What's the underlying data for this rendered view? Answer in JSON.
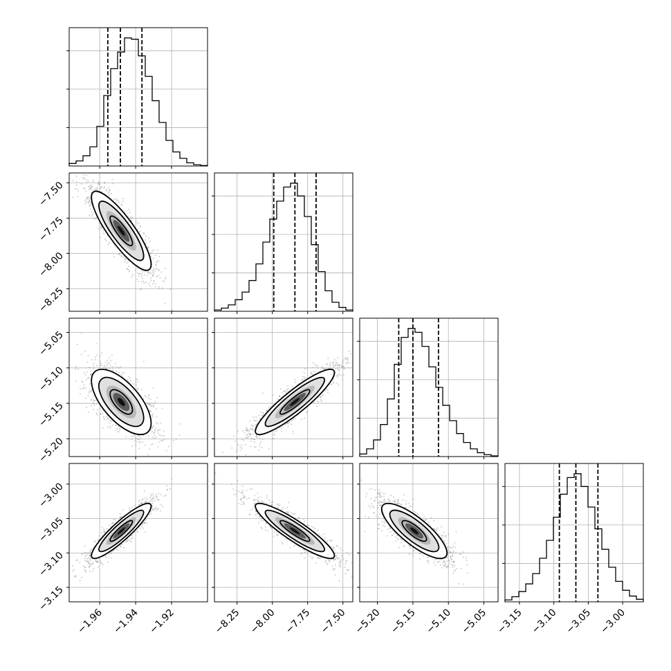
{
  "figure": {
    "type": "corner-plot",
    "grid": true,
    "quantile_lines": "dashed"
  },
  "chart_data": {
    "type": "corner",
    "params": [
      {
        "mean": -1.948,
        "sd": 0.0083,
        "range": [
          -1.977,
          -1.9
        ],
        "ticks": [
          -1.96,
          -1.94,
          -1.92
        ],
        "tick_labels": [
          "−1.96",
          "−1.94",
          "−1.92"
        ],
        "quantiles": [
          -1.9555,
          -1.9485,
          -1.9365
        ]
      },
      {
        "mean": -7.84,
        "sd": 0.14,
        "range": [
          -8.41,
          -7.43
        ],
        "ticks": [
          -8.25,
          -8.0,
          -7.75,
          -7.5
        ],
        "tick_labels": [
          "−8.25",
          "−8.00",
          "−7.75",
          "−7.50"
        ],
        "quantiles": [
          -7.99,
          -7.84,
          -7.69
        ]
      },
      {
        "mean": -5.148,
        "sd": 0.023,
        "range": [
          -5.225,
          -5.03
        ],
        "ticks": [
          -5.2,
          -5.15,
          -5.1,
          -5.05
        ],
        "tick_labels": [
          "−5.20",
          "−5.15",
          "−5.10",
          "−5.05"
        ],
        "quantiles": [
          -5.17,
          -5.15,
          -5.114
        ]
      },
      {
        "mean": -3.068,
        "sd": 0.02,
        "range": [
          -3.171,
          -2.97
        ],
        "ticks": [
          -3.15,
          -3.1,
          -3.05,
          -3.0
        ],
        "tick_labels": [
          "−3.15",
          "−3.10",
          "−3.05",
          "−3.00"
        ],
        "quantiles": [
          -3.092,
          -3.068,
          -3.036
        ]
      }
    ],
    "correlations": [
      {
        "pair": [
          1,
          0
        ],
        "rho": -0.85
      },
      {
        "pair": [
          2,
          0
        ],
        "rho": -0.65
      },
      {
        "pair": [
          2,
          1
        ],
        "rho": 0.9
      },
      {
        "pair": [
          3,
          0
        ],
        "rho": 0.9
      },
      {
        "pair": [
          3,
          1
        ],
        "rho": -0.9
      },
      {
        "pair": [
          3,
          2
        ],
        "rho": -0.8
      }
    ],
    "histograms": [
      [
        0.02,
        0.04,
        0.08,
        0.15,
        0.31,
        0.55,
        0.76,
        0.89,
        1.0,
        0.99,
        0.86,
        0.7,
        0.51,
        0.34,
        0.2,
        0.11,
        0.06,
        0.025,
        0.01,
        0.004
      ],
      [
        0.01,
        0.025,
        0.05,
        0.09,
        0.15,
        0.24,
        0.37,
        0.54,
        0.72,
        0.86,
        0.97,
        1.0,
        0.9,
        0.74,
        0.52,
        0.31,
        0.16,
        0.07,
        0.03,
        0.01
      ],
      [
        0.02,
        0.06,
        0.13,
        0.25,
        0.45,
        0.72,
        0.93,
        1.0,
        0.97,
        0.86,
        0.7,
        0.54,
        0.4,
        0.28,
        0.18,
        0.11,
        0.06,
        0.03,
        0.015,
        0.005
      ],
      [
        0.015,
        0.04,
        0.08,
        0.14,
        0.22,
        0.34,
        0.48,
        0.66,
        0.84,
        0.97,
        1.0,
        0.9,
        0.74,
        0.57,
        0.41,
        0.27,
        0.16,
        0.09,
        0.045,
        0.02
      ]
    ]
  }
}
